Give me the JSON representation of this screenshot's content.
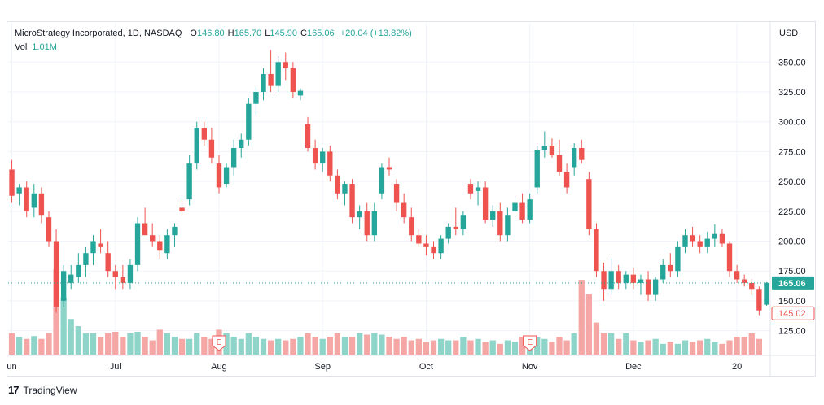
{
  "legend": {
    "symbol": "MicroStrategy Incorporated, 1D, NASDAQ",
    "open_label": "O",
    "open": "146.80",
    "high_label": "H",
    "high": "165.70",
    "low_label": "L",
    "low": "145.90",
    "close_label": "C",
    "close": "165.06",
    "change": "+20.04 (+13.82%)",
    "vol_label": "Vol",
    "vol": "1.01M"
  },
  "footer": {
    "logo_icon": "tradingview-logo-icon",
    "brand": "TradingView"
  },
  "colors": {
    "up": "#26a69a",
    "down": "#ef5350",
    "up_vol": "#8fd4c9",
    "down_vol": "#f4a7a5",
    "grid": "#f0f3fa"
  },
  "chart_data": {
    "type": "candlestick",
    "currency": "USD",
    "y_ticks": [
      125,
      150,
      175,
      200,
      225,
      250,
      275,
      300,
      325,
      350
    ],
    "ylim": [
      105,
      372
    ],
    "x_labels": [
      "un",
      "Jul",
      "Aug",
      "Sep",
      "Oct",
      "Nov",
      "Dec",
      "20"
    ],
    "x_label_index": [
      0,
      14,
      28,
      42,
      56,
      70,
      84,
      98
    ],
    "last_price": "165.06",
    "last_price_value": 165.06,
    "prev_marker": "145.02",
    "prev_marker_value": 145.02,
    "earnings_markers": [
      {
        "label": "E",
        "index": 28
      },
      {
        "label": "E",
        "index": 70
      }
    ],
    "candles": [
      {
        "o": 260,
        "h": 268,
        "l": 232,
        "c": 238
      },
      {
        "o": 240,
        "h": 248,
        "l": 230,
        "c": 245
      },
      {
        "o": 245,
        "h": 250,
        "l": 220,
        "c": 225
      },
      {
        "o": 228,
        "h": 248,
        "l": 220,
        "c": 240
      },
      {
        "o": 240,
        "h": 245,
        "l": 215,
        "c": 222
      },
      {
        "o": 220,
        "h": 225,
        "l": 195,
        "c": 200
      },
      {
        "o": 200,
        "h": 210,
        "l": 140,
        "c": 145
      },
      {
        "o": 150,
        "h": 180,
        "l": 145,
        "c": 175
      },
      {
        "o": 165,
        "h": 180,
        "l": 160,
        "c": 172
      },
      {
        "o": 170,
        "h": 190,
        "l": 165,
        "c": 180
      },
      {
        "o": 180,
        "h": 195,
        "l": 170,
        "c": 190
      },
      {
        "o": 190,
        "h": 205,
        "l": 180,
        "c": 200
      },
      {
        "o": 198,
        "h": 210,
        "l": 190,
        "c": 195
      },
      {
        "o": 190,
        "h": 200,
        "l": 170,
        "c": 175
      },
      {
        "o": 175,
        "h": 180,
        "l": 160,
        "c": 170
      },
      {
        "o": 170,
        "h": 180,
        "l": 160,
        "c": 165
      },
      {
        "o": 165,
        "h": 185,
        "l": 160,
        "c": 180
      },
      {
        "o": 180,
        "h": 220,
        "l": 175,
        "c": 215
      },
      {
        "o": 215,
        "h": 228,
        "l": 205,
        "c": 205
      },
      {
        "o": 205,
        "h": 215,
        "l": 195,
        "c": 200
      },
      {
        "o": 200,
        "h": 205,
        "l": 185,
        "c": 192
      },
      {
        "o": 190,
        "h": 210,
        "l": 185,
        "c": 205
      },
      {
        "o": 205,
        "h": 215,
        "l": 195,
        "c": 212
      },
      {
        "o": 228,
        "h": 235,
        "l": 222,
        "c": 225
      },
      {
        "o": 235,
        "h": 272,
        "l": 230,
        "c": 265
      },
      {
        "o": 265,
        "h": 300,
        "l": 260,
        "c": 295
      },
      {
        "o": 295,
        "h": 300,
        "l": 280,
        "c": 285
      },
      {
        "o": 285,
        "h": 295,
        "l": 265,
        "c": 270
      },
      {
        "o": 265,
        "h": 272,
        "l": 240,
        "c": 245
      },
      {
        "o": 248,
        "h": 265,
        "l": 245,
        "c": 262
      },
      {
        "o": 262,
        "h": 285,
        "l": 255,
        "c": 278
      },
      {
        "o": 278,
        "h": 290,
        "l": 270,
        "c": 285
      },
      {
        "o": 285,
        "h": 320,
        "l": 280,
        "c": 315
      },
      {
        "o": 315,
        "h": 330,
        "l": 305,
        "c": 325
      },
      {
        "o": 325,
        "h": 345,
        "l": 318,
        "c": 340
      },
      {
        "o": 340,
        "h": 360,
        "l": 325,
        "c": 330
      },
      {
        "o": 330,
        "h": 355,
        "l": 325,
        "c": 350
      },
      {
        "o": 350,
        "h": 358,
        "l": 335,
        "c": 345
      },
      {
        "o": 345,
        "h": 350,
        "l": 320,
        "c": 325
      },
      {
        "o": 322,
        "h": 328,
        "l": 318,
        "c": 326
      },
      {
        "o": 298,
        "h": 304,
        "l": 275,
        "c": 278
      },
      {
        "o": 278,
        "h": 285,
        "l": 260,
        "c": 265
      },
      {
        "o": 265,
        "h": 278,
        "l": 258,
        "c": 275
      },
      {
        "o": 275,
        "h": 280,
        "l": 250,
        "c": 255
      },
      {
        "o": 255,
        "h": 260,
        "l": 235,
        "c": 240
      },
      {
        "o": 240,
        "h": 250,
        "l": 230,
        "c": 248
      },
      {
        "o": 248,
        "h": 252,
        "l": 215,
        "c": 220
      },
      {
        "o": 220,
        "h": 230,
        "l": 210,
        "c": 225
      },
      {
        "o": 225,
        "h": 232,
        "l": 200,
        "c": 205
      },
      {
        "o": 205,
        "h": 232,
        "l": 200,
        "c": 225
      },
      {
        "o": 240,
        "h": 265,
        "l": 235,
        "c": 262
      },
      {
        "o": 262,
        "h": 270,
        "l": 255,
        "c": 260
      },
      {
        "o": 248,
        "h": 252,
        "l": 225,
        "c": 232
      },
      {
        "o": 232,
        "h": 240,
        "l": 215,
        "c": 220
      },
      {
        "o": 220,
        "h": 228,
        "l": 200,
        "c": 205
      },
      {
        "o": 205,
        "h": 210,
        "l": 195,
        "c": 198
      },
      {
        "o": 198,
        "h": 205,
        "l": 188,
        "c": 195
      },
      {
        "o": 195,
        "h": 200,
        "l": 185,
        "c": 190
      },
      {
        "o": 190,
        "h": 205,
        "l": 185,
        "c": 202
      },
      {
        "o": 202,
        "h": 215,
        "l": 198,
        "c": 212
      },
      {
        "o": 212,
        "h": 228,
        "l": 205,
        "c": 210
      },
      {
        "o": 210,
        "h": 225,
        "l": 205,
        "c": 222
      },
      {
        "o": 248,
        "h": 252,
        "l": 235,
        "c": 240
      },
      {
        "o": 242,
        "h": 250,
        "l": 230,
        "c": 245
      },
      {
        "o": 245,
        "h": 250,
        "l": 215,
        "c": 218
      },
      {
        "o": 218,
        "h": 230,
        "l": 212,
        "c": 225
      },
      {
        "o": 225,
        "h": 232,
        "l": 200,
        "c": 205
      },
      {
        "o": 205,
        "h": 228,
        "l": 200,
        "c": 222
      },
      {
        "o": 225,
        "h": 238,
        "l": 220,
        "c": 232
      },
      {
        "o": 232,
        "h": 240,
        "l": 215,
        "c": 218
      },
      {
        "o": 218,
        "h": 240,
        "l": 215,
        "c": 235
      },
      {
        "o": 245,
        "h": 280,
        "l": 240,
        "c": 276
      },
      {
        "o": 276,
        "h": 292,
        "l": 270,
        "c": 280
      },
      {
        "o": 280,
        "h": 286,
        "l": 270,
        "c": 272
      },
      {
        "o": 272,
        "h": 285,
        "l": 255,
        "c": 258
      },
      {
        "o": 258,
        "h": 265,
        "l": 240,
        "c": 245
      },
      {
        "o": 262,
        "h": 282,
        "l": 255,
        "c": 278
      },
      {
        "o": 278,
        "h": 285,
        "l": 265,
        "c": 268
      },
      {
        "o": 252,
        "h": 258,
        "l": 205,
        "c": 210
      },
      {
        "o": 210,
        "h": 215,
        "l": 170,
        "c": 175
      },
      {
        "o": 175,
        "h": 182,
        "l": 150,
        "c": 160
      },
      {
        "o": 160,
        "h": 185,
        "l": 155,
        "c": 175
      },
      {
        "o": 175,
        "h": 180,
        "l": 160,
        "c": 165
      },
      {
        "o": 165,
        "h": 175,
        "l": 160,
        "c": 172
      },
      {
        "o": 172,
        "h": 178,
        "l": 160,
        "c": 165
      },
      {
        "o": 165,
        "h": 172,
        "l": 155,
        "c": 168
      },
      {
        "o": 168,
        "h": 175,
        "l": 150,
        "c": 155
      },
      {
        "o": 155,
        "h": 170,
        "l": 150,
        "c": 168
      },
      {
        "o": 168,
        "h": 185,
        "l": 165,
        "c": 180
      },
      {
        "o": 180,
        "h": 190,
        "l": 170,
        "c": 175
      },
      {
        "o": 175,
        "h": 200,
        "l": 170,
        "c": 195
      },
      {
        "o": 195,
        "h": 210,
        "l": 190,
        "c": 205
      },
      {
        "o": 205,
        "h": 212,
        "l": 195,
        "c": 200
      },
      {
        "o": 200,
        "h": 205,
        "l": 190,
        "c": 195
      },
      {
        "o": 195,
        "h": 208,
        "l": 190,
        "c": 202
      },
      {
        "o": 202,
        "h": 214,
        "l": 195,
        "c": 206
      },
      {
        "o": 206,
        "h": 210,
        "l": 195,
        "c": 198
      },
      {
        "o": 198,
        "h": 200,
        "l": 170,
        "c": 175
      },
      {
        "o": 175,
        "h": 180,
        "l": 165,
        "c": 168
      },
      {
        "o": 168,
        "h": 172,
        "l": 162,
        "c": 165
      },
      {
        "o": 165,
        "h": 168,
        "l": 155,
        "c": 160
      },
      {
        "o": 160,
        "h": 162,
        "l": 138,
        "c": 142
      },
      {
        "o": 146.8,
        "h": 165.7,
        "l": 145.9,
        "c": 165.06
      }
    ],
    "volumes": [
      0.3,
      0.25,
      0.22,
      0.26,
      0.22,
      0.3,
      1.2,
      0.8,
      0.5,
      0.4,
      0.3,
      0.3,
      0.25,
      0.3,
      0.32,
      0.25,
      0.3,
      0.32,
      0.25,
      0.2,
      0.35,
      0.3,
      0.25,
      0.22,
      0.22,
      0.3,
      0.25,
      0.22,
      0.35,
      0.3,
      0.25,
      0.22,
      0.3,
      0.25,
      0.22,
      0.2,
      0.22,
      0.2,
      0.22,
      0.25,
      0.3,
      0.25,
      0.22,
      0.25,
      0.3,
      0.25,
      0.25,
      0.3,
      0.28,
      0.3,
      0.28,
      0.25,
      0.22,
      0.25,
      0.2,
      0.22,
      0.18,
      0.2,
      0.22,
      0.2,
      0.2,
      0.25,
      0.2,
      0.22,
      0.18,
      0.2,
      0.15,
      0.2,
      0.18,
      0.25,
      0.2,
      0.25,
      0.22,
      0.18,
      0.25,
      0.2,
      0.3,
      1.05,
      0.85,
      0.45,
      0.3,
      0.3,
      0.22,
      0.3,
      0.2,
      0.18,
      0.2,
      0.22,
      0.15,
      0.18,
      0.15,
      0.2,
      0.18,
      0.2,
      0.22,
      0.18,
      0.15,
      0.2,
      0.25,
      0.25,
      0.3,
      0.22
    ]
  }
}
